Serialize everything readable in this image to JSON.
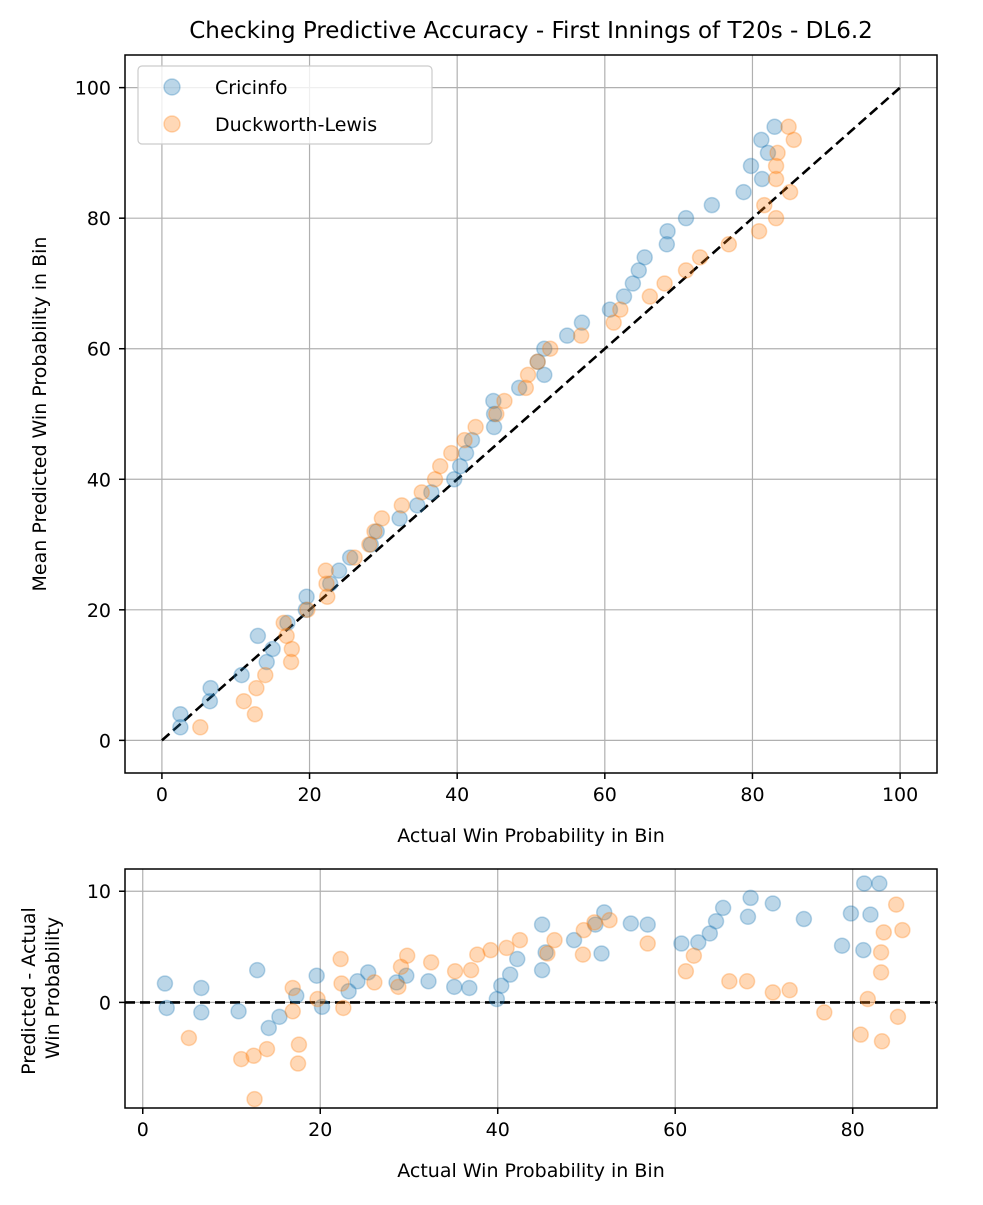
{
  "chart_data": [
    {
      "type": "scatter",
      "title": "Checking Predictive Accuracy - First Innings of T20s - DL6.2",
      "xlabel": "Actual Win Probability in Bin",
      "ylabel": "Mean Predicted Win Probability in Bin",
      "xlim": [
        -5,
        105
      ],
      "ylim": [
        -5,
        105
      ],
      "xticks": [
        "0",
        "20",
        "40",
        "60",
        "80",
        "100"
      ],
      "yticks": [
        "0",
        "20",
        "40",
        "60",
        "80",
        "100"
      ],
      "grid": true,
      "legend_position": "top-left",
      "reference_line": {
        "style": "dashed",
        "color": "#000000",
        "x": [
          0,
          100
        ],
        "y": [
          0,
          100
        ]
      },
      "series": [
        {
          "name": "Cricinfo",
          "color": "#1f77b4",
          "points": [
            [
              2.5,
              2
            ],
            [
              2.5,
              4
            ],
            [
              6.5,
              6
            ],
            [
              6.6,
              8
            ],
            [
              10.8,
              10
            ],
            [
              14.2,
              12
            ],
            [
              13,
              16
            ],
            [
              15,
              14
            ],
            [
              17,
              18
            ],
            [
              19.5,
              20
            ],
            [
              19.6,
              22
            ],
            [
              22.8,
              24
            ],
            [
              24,
              26
            ],
            [
              25.5,
              28
            ],
            [
              28.3,
              30
            ],
            [
              29.1,
              32
            ],
            [
              32.2,
              34
            ],
            [
              34.6,
              36
            ],
            [
              36.5,
              38
            ],
            [
              39.6,
              40
            ],
            [
              40.4,
              42
            ],
            [
              41.2,
              44
            ],
            [
              42,
              46
            ],
            [
              45,
              48
            ],
            [
              45,
              50
            ],
            [
              44.9,
              52
            ],
            [
              48.4,
              54
            ],
            [
              51.8,
              56
            ],
            [
              50.9,
              58
            ],
            [
              51.8,
              60
            ],
            [
              54.9,
              62
            ],
            [
              56.9,
              64
            ],
            [
              60.7,
              66
            ],
            [
              62.6,
              68
            ],
            [
              63.8,
              70
            ],
            [
              64.6,
              72
            ],
            [
              65.4,
              74
            ],
            [
              68.4,
              76
            ],
            [
              68.5,
              78
            ],
            [
              71,
              80
            ],
            [
              74.5,
              82
            ],
            [
              78.8,
              84
            ],
            [
              81.3,
              86
            ],
            [
              79.8,
              88
            ],
            [
              82.1,
              90
            ],
            [
              81.2,
              92
            ],
            [
              83,
              94
            ]
          ]
        },
        {
          "name": "Duckworth-Lewis",
          "color": "#ff7f0e",
          "points": [
            [
              5.2,
              2
            ],
            [
              12.6,
              4
            ],
            [
              11.1,
              6
            ],
            [
              12.8,
              8
            ],
            [
              14,
              10
            ],
            [
              17.5,
              12
            ],
            [
              17.6,
              14
            ],
            [
              16.9,
              16
            ],
            [
              16.5,
              18
            ],
            [
              19.7,
              20
            ],
            [
              22.4,
              22
            ],
            [
              22.3,
              24
            ],
            [
              22.2,
              26
            ],
            [
              26.1,
              28
            ],
            [
              28.1,
              30
            ],
            [
              28.8,
              32
            ],
            [
              29.8,
              34
            ],
            [
              32.5,
              36
            ],
            [
              35.2,
              38
            ],
            [
              37,
              40
            ],
            [
              37.7,
              42
            ],
            [
              39.2,
              44
            ],
            [
              41,
              46
            ],
            [
              42.5,
              48
            ],
            [
              45.3,
              50
            ],
            [
              46.4,
              52
            ],
            [
              49.3,
              54
            ],
            [
              49.6,
              56
            ],
            [
              50.9,
              58
            ],
            [
              52.6,
              60
            ],
            [
              56.8,
              62
            ],
            [
              61.2,
              64
            ],
            [
              62.1,
              66
            ],
            [
              66.1,
              68
            ],
            [
              68.1,
              70
            ],
            [
              71,
              72
            ],
            [
              72.9,
              74
            ],
            [
              76.8,
              76
            ],
            [
              80.9,
              78
            ],
            [
              83.2,
              80
            ],
            [
              81.6,
              82
            ],
            [
              85.1,
              84
            ],
            [
              83.2,
              86
            ],
            [
              83.2,
              88
            ],
            [
              83.4,
              90
            ],
            [
              85.6,
              92
            ],
            [
              84.9,
              94
            ]
          ]
        }
      ]
    },
    {
      "type": "scatter",
      "title": "",
      "xlabel": "Actual Win Probability in Bin",
      "ylabel": "Predicted - Actual\nWin Probability",
      "ylabel_lines": [
        "Predicted - Actual",
        "Win Probability"
      ],
      "xlim": [
        -2,
        89.5
      ],
      "ylim": [
        -9.5,
        12
      ],
      "xticks": [
        "0",
        "20",
        "40",
        "60",
        "80"
      ],
      "yticks": [
        "0",
        "10"
      ],
      "grid": true,
      "reference_line": {
        "style": "dashed",
        "color": "#000000",
        "y": 0
      },
      "series": [
        {
          "name": "Cricinfo",
          "color": "#1f77b4",
          "points": [
            [
              2.5,
              1.7
            ],
            [
              2.7,
              -0.5
            ],
            [
              6.6,
              1.3
            ],
            [
              6.6,
              -0.9
            ],
            [
              10.8,
              -0.8
            ],
            [
              12.9,
              2.9
            ],
            [
              14.2,
              -2.3
            ],
            [
              15.4,
              -1.3
            ],
            [
              17.3,
              0.6
            ],
            [
              19.6,
              2.4
            ],
            [
              20.2,
              -0.4
            ],
            [
              23.2,
              1
            ],
            [
              24.2,
              1.9
            ],
            [
              25.4,
              2.7
            ],
            [
              28.6,
              1.8
            ],
            [
              29.7,
              2.4
            ],
            [
              32.2,
              1.9
            ],
            [
              35.1,
              1.4
            ],
            [
              36.8,
              1.3
            ],
            [
              39.9,
              0.3
            ],
            [
              40.4,
              1.5
            ],
            [
              41.4,
              2.5
            ],
            [
              42.2,
              3.9
            ],
            [
              45,
              2.9
            ],
            [
              45,
              7
            ],
            [
              45.4,
              4.5
            ],
            [
              48.6,
              5.6
            ],
            [
              51,
              7
            ],
            [
              51.7,
              4.4
            ],
            [
              52,
              8.1
            ],
            [
              55,
              7.1
            ],
            [
              56.9,
              7
            ],
            [
              60.7,
              5.3
            ],
            [
              62.6,
              5.4
            ],
            [
              63.9,
              6.2
            ],
            [
              64.6,
              7.3
            ],
            [
              65.4,
              8.5
            ],
            [
              68.2,
              7.7
            ],
            [
              68.5,
              9.4
            ],
            [
              71,
              8.9
            ],
            [
              74.5,
              7.5
            ],
            [
              78.8,
              5.1
            ],
            [
              79.8,
              8
            ],
            [
              81.2,
              4.7
            ],
            [
              81.3,
              10.7
            ],
            [
              82,
              7.9
            ],
            [
              83,
              10.7
            ]
          ]
        },
        {
          "name": "Duckworth-Lewis",
          "color": "#ff7f0e",
          "points": [
            [
              5.2,
              -3.2
            ],
            [
              11.1,
              -5.1
            ],
            [
              12.5,
              -4.8
            ],
            [
              12.6,
              -8.7
            ],
            [
              14,
              -4.2
            ],
            [
              16.9,
              1.3
            ],
            [
              16.9,
              -0.8
            ],
            [
              17.5,
              -5.5
            ],
            [
              17.6,
              -3.8
            ],
            [
              19.7,
              0.3
            ],
            [
              22.3,
              3.9
            ],
            [
              22.4,
              1.7
            ],
            [
              22.6,
              -0.5
            ],
            [
              26.1,
              1.8
            ],
            [
              28.8,
              1.4
            ],
            [
              29.1,
              3.2
            ],
            [
              29.8,
              4.2
            ],
            [
              32.5,
              3.6
            ],
            [
              35.2,
              2.8
            ],
            [
              37,
              2.9
            ],
            [
              37.7,
              4.3
            ],
            [
              39.2,
              4.7
            ],
            [
              41,
              4.9
            ],
            [
              42.5,
              5.6
            ],
            [
              45.6,
              4.4
            ],
            [
              46.4,
              5.6
            ],
            [
              49.6,
              4.3
            ],
            [
              49.7,
              6.5
            ],
            [
              50.9,
              7.2
            ],
            [
              52.6,
              7.4
            ],
            [
              56.9,
              5.3
            ],
            [
              61.2,
              2.8
            ],
            [
              62.1,
              4.2
            ],
            [
              66.1,
              1.9
            ],
            [
              68.1,
              1.9
            ],
            [
              71,
              0.9
            ],
            [
              72.9,
              1.1
            ],
            [
              76.8,
              -0.9
            ],
            [
              80.9,
              -2.9
            ],
            [
              81.7,
              0.3
            ],
            [
              83.2,
              4.5
            ],
            [
              83.2,
              2.7
            ],
            [
              83.3,
              -3.5
            ],
            [
              83.5,
              6.3
            ],
            [
              84.9,
              8.8
            ],
            [
              85.1,
              -1.3
            ],
            [
              85.6,
              6.5
            ]
          ]
        }
      ]
    }
  ]
}
